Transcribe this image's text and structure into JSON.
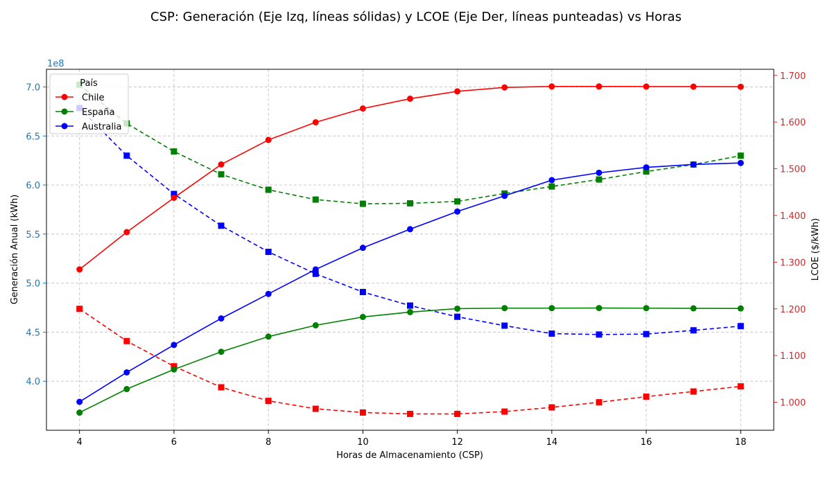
{
  "chart_data": {
    "type": "line",
    "title": "CSP: Generación (Eje Izq, líneas sólidas) y LCOE (Eje Der, líneas punteadas) vs Horas",
    "xlabel": "Horas de Almacenamiento (CSP)",
    "ylabel_left": "Generación Anual (kWh)",
    "ylabel_right": "LCOE ($/kWh)",
    "left_offset_label": "1e8",
    "x": [
      4,
      5,
      6,
      7,
      8,
      9,
      10,
      11,
      12,
      13,
      14,
      15,
      16,
      17,
      18
    ],
    "xlim": [
      3.3,
      18.7
    ],
    "ylim_left": [
      3.5,
      7.18
    ],
    "ylim_right": [
      0.94,
      1.713
    ],
    "x_ticks": [
      4,
      6,
      8,
      10,
      12,
      14,
      16,
      18
    ],
    "left_ticks": [
      4.0,
      4.5,
      5.0,
      5.5,
      6.0,
      6.5,
      7.0
    ],
    "left_tick_labels": [
      "4.0",
      "4.5",
      "5.0",
      "5.5",
      "6.0",
      "6.5",
      "7.0"
    ],
    "right_ticks": [
      1.0,
      1.1,
      1.2,
      1.3,
      1.4,
      1.5,
      1.6,
      1.7
    ],
    "right_tick_labels": [
      "1.000",
      "1.100",
      "1.200",
      "1.300",
      "1.400",
      "1.500",
      "1.600",
      "1.700"
    ],
    "grid": true,
    "legend_title": "País",
    "legend_position": "top-left",
    "legend": [
      {
        "name": "Chile",
        "color": "#ff0000"
      },
      {
        "name": "España",
        "color": "#008000"
      },
      {
        "name": "Australia",
        "color": "#0000ff"
      }
    ],
    "generation_series": [
      {
        "name": "Chile",
        "color": "#ff0000",
        "axis": "left",
        "values": [
          5.14,
          5.52,
          5.87,
          6.21,
          6.46,
          6.64,
          6.78,
          6.88,
          6.955,
          6.995,
          7.005,
          7.005,
          7.004,
          7.003,
          7.002
        ]
      },
      {
        "name": "España",
        "color": "#008000",
        "axis": "left",
        "values": [
          3.68,
          3.92,
          4.12,
          4.3,
          4.455,
          4.57,
          4.655,
          4.705,
          4.74,
          4.745,
          4.745,
          4.746,
          4.745,
          4.743,
          4.742
        ]
      },
      {
        "name": "Australia",
        "color": "#0000ff",
        "axis": "left",
        "values": [
          3.79,
          4.09,
          4.37,
          4.64,
          4.89,
          5.14,
          5.36,
          5.55,
          5.73,
          5.89,
          6.05,
          6.125,
          6.18,
          6.21,
          6.225
        ]
      }
    ],
    "lcoe_series": [
      {
        "name": "Chile",
        "color": "#ff0000",
        "axis": "right",
        "values": [
          1.2,
          1.131,
          1.077,
          1.032,
          1.003,
          0.986,
          0.978,
          0.975,
          0.975,
          0.98,
          0.989,
          1.0,
          1.012,
          1.023,
          1.034
        ]
      },
      {
        "name": "España",
        "color": "#008000",
        "axis": "right",
        "values": [
          1.68,
          1.597,
          1.537,
          1.488,
          1.455,
          1.434,
          1.425,
          1.426,
          1.43,
          1.447,
          1.462,
          1.477,
          1.494,
          1.509,
          1.528
        ]
      },
      {
        "name": "Australia",
        "color": "#0000ff",
        "axis": "right",
        "values": [
          1.63,
          1.528,
          1.446,
          1.378,
          1.322,
          1.275,
          1.236,
          1.207,
          1.183,
          1.164,
          1.147,
          1.145,
          1.146,
          1.154,
          1.163
        ]
      }
    ]
  }
}
